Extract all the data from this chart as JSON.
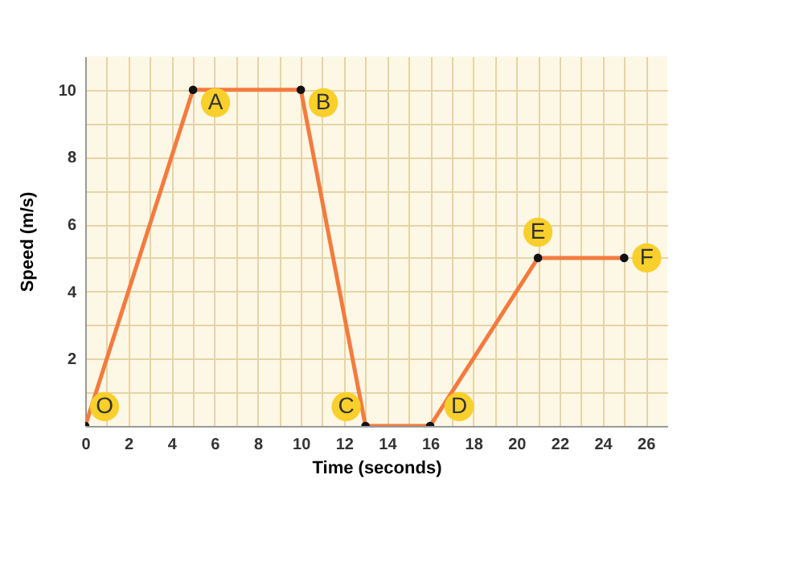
{
  "chart_data": {
    "type": "line",
    "xlabel": "Time (seconds)",
    "ylabel": "Speed (m/s)",
    "x": [
      0,
      5,
      10,
      13,
      16,
      21,
      25
    ],
    "series": [
      {
        "color": "#f47b3e",
        "values": [
          0,
          10,
          10,
          0,
          0,
          5,
          5
        ]
      }
    ],
    "xlim": [
      0,
      27
    ],
    "ylim": [
      0,
      11
    ],
    "xticks": [
      {
        "value": 0,
        "label": "0"
      },
      {
        "value": 1,
        "label": null
      },
      2,
      {
        "value": 3,
        "label": null
      },
      4,
      {
        "value": 5,
        "label": null
      },
      6,
      {
        "value": 7,
        "label": null
      },
      8,
      {
        "value": 9,
        "label": null
      },
      10,
      {
        "value": 11,
        "label": null
      },
      12,
      {
        "value": 13,
        "label": null
      },
      14,
      {
        "value": 15,
        "label": null
      },
      16,
      {
        "value": 17,
        "label": null
      },
      18,
      {
        "value": 19,
        "label": null
      },
      20,
      {
        "value": 21,
        "label": null
      },
      22,
      {
        "value": 23,
        "label": null
      },
      24,
      {
        "value": 25,
        "label": null
      },
      26
    ],
    "yticks": [
      {
        "value": 1,
        "label": null
      },
      2,
      {
        "value": 3,
        "label": null
      },
      4,
      {
        "value": 5,
        "label": null
      },
      6,
      {
        "value": 7,
        "label": null
      },
      8,
      {
        "value": 9,
        "label": null
      },
      10
    ],
    "grid": true,
    "marker": "circle",
    "annotations": [
      {
        "text": "O",
        "x": 0,
        "y": 0
      },
      {
        "text": "A",
        "x": 5,
        "y": 10
      },
      {
        "text": "B",
        "x": 10,
        "y": 10
      },
      {
        "text": "C",
        "x": 13,
        "y": 0
      },
      {
        "text": "D",
        "x": 16,
        "y": 0
      },
      {
        "text": "E",
        "x": 21,
        "y": 5
      },
      {
        "text": "F",
        "x": 25,
        "y": 5
      }
    ]
  }
}
